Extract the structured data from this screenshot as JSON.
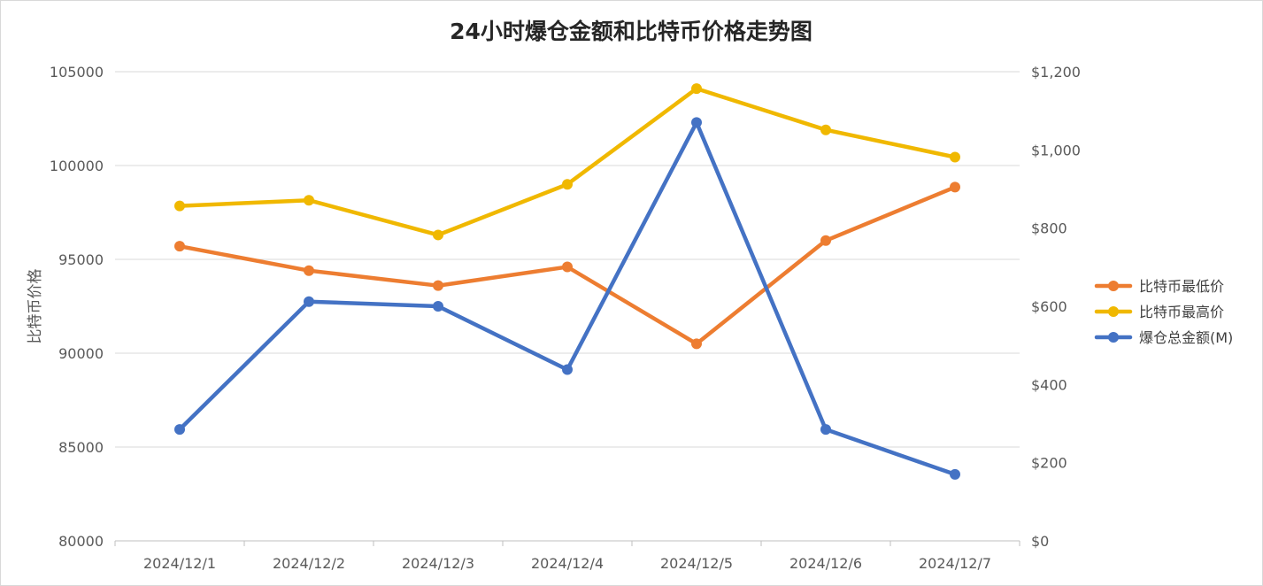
{
  "chart_data": {
    "type": "line",
    "title": "24小时爆仓金额和比特币价格走势图",
    "xlabel": "",
    "ylabel": "比特币价格",
    "y2label": "",
    "categories": [
      "2024/12/1",
      "2024/12/2",
      "2024/12/3",
      "2024/12/4",
      "2024/12/5",
      "2024/12/6",
      "2024/12/7"
    ],
    "ylim": [
      80000,
      105000
    ],
    "yticks": [
      80000,
      85000,
      90000,
      95000,
      100000,
      105000
    ],
    "ytick_labels": [
      "80000",
      "85000",
      "90000",
      "95000",
      "100000",
      "105000"
    ],
    "y2lim": [
      0,
      1200
    ],
    "y2ticks": [
      0,
      200,
      400,
      600,
      800,
      1000,
      1200
    ],
    "y2tick_labels": [
      "$0",
      "$200",
      "$400",
      "$600",
      "$800",
      "$1,000",
      "$1,200"
    ],
    "grid": true,
    "legend_position": "right",
    "series": [
      {
        "name": "比特币最低价",
        "axis": "left",
        "color": "#ED7D31",
        "values": [
          95700,
          94400,
          93600,
          94600,
          90500,
          96000,
          98850
        ]
      },
      {
        "name": "比特币最高价",
        "axis": "left",
        "color": "#F0B800",
        "values": [
          97850,
          98150,
          96300,
          99000,
          104100,
          101900,
          100450
        ]
      },
      {
        "name": "爆仓总金额(M)",
        "axis": "right",
        "color": "#4472C4",
        "values": [
          285,
          612,
          600,
          438,
          1070,
          285,
          170
        ]
      }
    ]
  }
}
